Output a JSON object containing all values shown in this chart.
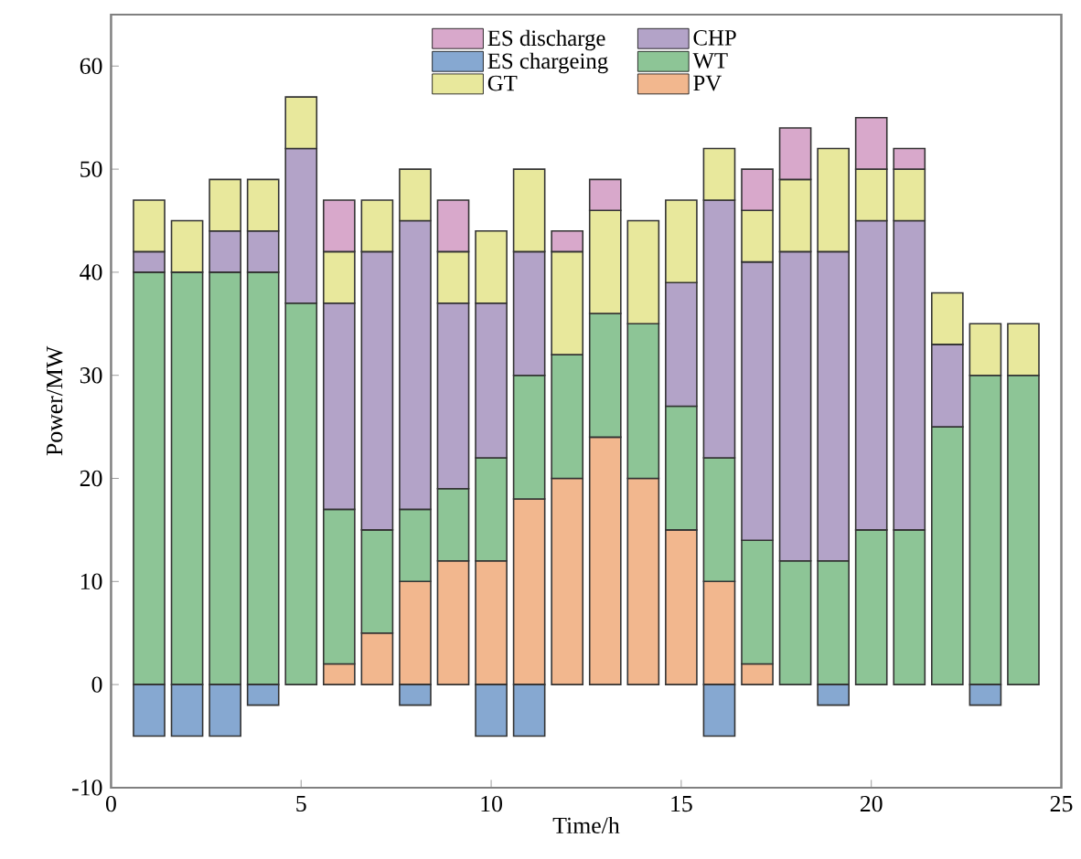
{
  "chart_data": {
    "type": "bar",
    "stacked": true,
    "xlabel": "Time/h",
    "ylabel": "Power/MW",
    "x": [
      1,
      2,
      3,
      4,
      5,
      6,
      7,
      8,
      9,
      10,
      11,
      12,
      13,
      14,
      15,
      16,
      17,
      18,
      19,
      20,
      21,
      22,
      23,
      24
    ],
    "series": [
      {
        "name": "PV",
        "color": "#f2b78e",
        "values": [
          0,
          0,
          0,
          0,
          0,
          2,
          5,
          10,
          12,
          12,
          18,
          20,
          24,
          20,
          15,
          10,
          2,
          0,
          0,
          0,
          0,
          0,
          0,
          0
        ]
      },
      {
        "name": "WT",
        "color": "#8dc596",
        "values": [
          40,
          40,
          40,
          40,
          37,
          15,
          10,
          7,
          7,
          10,
          12,
          12,
          12,
          15,
          12,
          12,
          12,
          12,
          12,
          15,
          15,
          25,
          30,
          30
        ]
      },
      {
        "name": "CHP",
        "color": "#b3a3c8",
        "values": [
          2,
          0,
          4,
          4,
          15,
          20,
          27,
          28,
          18,
          15,
          12,
          0,
          0,
          0,
          12,
          25,
          27,
          30,
          30,
          30,
          30,
          8,
          0,
          0
        ]
      },
      {
        "name": "GT",
        "color": "#e8e89c",
        "values": [
          5,
          5,
          5,
          5,
          5,
          5,
          5,
          5,
          5,
          7,
          8,
          10,
          10,
          10,
          8,
          5,
          5,
          7,
          10,
          5,
          5,
          5,
          5,
          5
        ]
      },
      {
        "name": "ES chargeing",
        "color": "#86a8d1",
        "values": [
          -5,
          -5,
          -5,
          -2,
          0,
          0,
          0,
          -2,
          0,
          -5,
          -5,
          0,
          0,
          0,
          0,
          -5,
          0,
          0,
          -2,
          0,
          0,
          0,
          -2,
          0
        ]
      },
      {
        "name": "ES discharge",
        "color": "#d8a8cb",
        "values": [
          0,
          0,
          0,
          0,
          0,
          5,
          0,
          0,
          5,
          0,
          0,
          2,
          3,
          0,
          0,
          0,
          4,
          5,
          0,
          5,
          2,
          0,
          0,
          0
        ]
      }
    ],
    "legend": "top",
    "xlim": [
      0,
      25
    ],
    "xticks": [
      0,
      5,
      10,
      15,
      20,
      25
    ],
    "ylim": [
      -10,
      65
    ],
    "yticks": [
      -10,
      0,
      10,
      20,
      30,
      40,
      50,
      60
    ]
  }
}
